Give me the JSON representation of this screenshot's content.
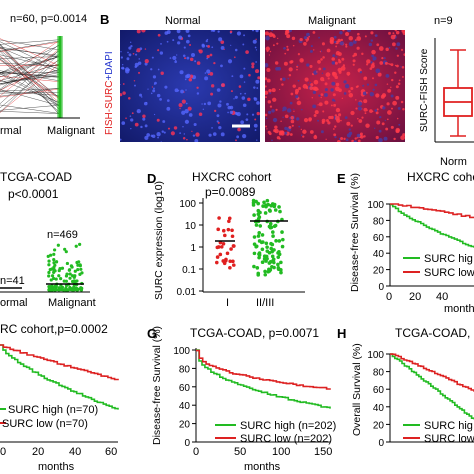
{
  "panelA": {
    "stat": "n=60, p=0.0014",
    "xticks": [
      "rmal",
      "Malignant"
    ]
  },
  "panelB": {
    "letter": "B",
    "normal_title": "Normal",
    "malignant_title": "Malignant",
    "channel_label": "FISH-SURC+DAPI",
    "box_n": "n=9",
    "box_ylabel": "SURC-FISH Score",
    "box_xtick": "Norm"
  },
  "panelC": {
    "title": "TCGA-COAD",
    "stat": "p<0.0001",
    "n_normal": "n=41",
    "n_malignant": "n=469",
    "xticks": [
      "ormal",
      "Malignant"
    ]
  },
  "panelD": {
    "letter": "D",
    "title": "HXCRC cohort",
    "stat": "p=0.0089",
    "ylabel": "SURC expression (log10)",
    "yticks": [
      "100",
      "10",
      "1",
      "0.1",
      "0.01"
    ],
    "xticks": [
      "I",
      "II/III"
    ]
  },
  "panelE": {
    "letter": "E",
    "title": "HXCRC cohor",
    "ylabel": "Disease-free Survival (%)",
    "yticks": [
      "100",
      "80",
      "60",
      "40",
      "20",
      "0"
    ],
    "xticks": [
      "0",
      "20",
      "40"
    ],
    "xlabel": "month",
    "legend": [
      "SURC hig",
      "SURC low"
    ]
  },
  "panelF": {
    "title": "RC cohort,p=0.0002",
    "legend": [
      "SURC high (n=70)",
      "SURC low (n=70)"
    ],
    "xticks": [
      "0",
      "20",
      "40",
      "60"
    ],
    "xlabel": "months"
  },
  "panelG": {
    "letter": "G",
    "title": "TCGA-COAD, p=0.0071",
    "ylabel": "Disease-free Survival (%)",
    "yticks": [
      "100",
      "80",
      "60",
      "40",
      "20",
      "0"
    ],
    "xticks": [
      "0",
      "50",
      "100",
      "150"
    ],
    "xlabel": "months",
    "legend": [
      "SURC high (n=202)",
      "SURC low (n=202)"
    ]
  },
  "panelH": {
    "letter": "H",
    "title": "TCGA-COAD,",
    "ylabel": "Overall Survival (%)",
    "yticks": [
      "100",
      "80",
      "60",
      "40",
      "20",
      "0"
    ],
    "legend": [
      "SURC hig",
      "SURC low"
    ]
  },
  "colors": {
    "high": "#22bb22",
    "low": "#dd2222",
    "red": "#e02020"
  }
}
